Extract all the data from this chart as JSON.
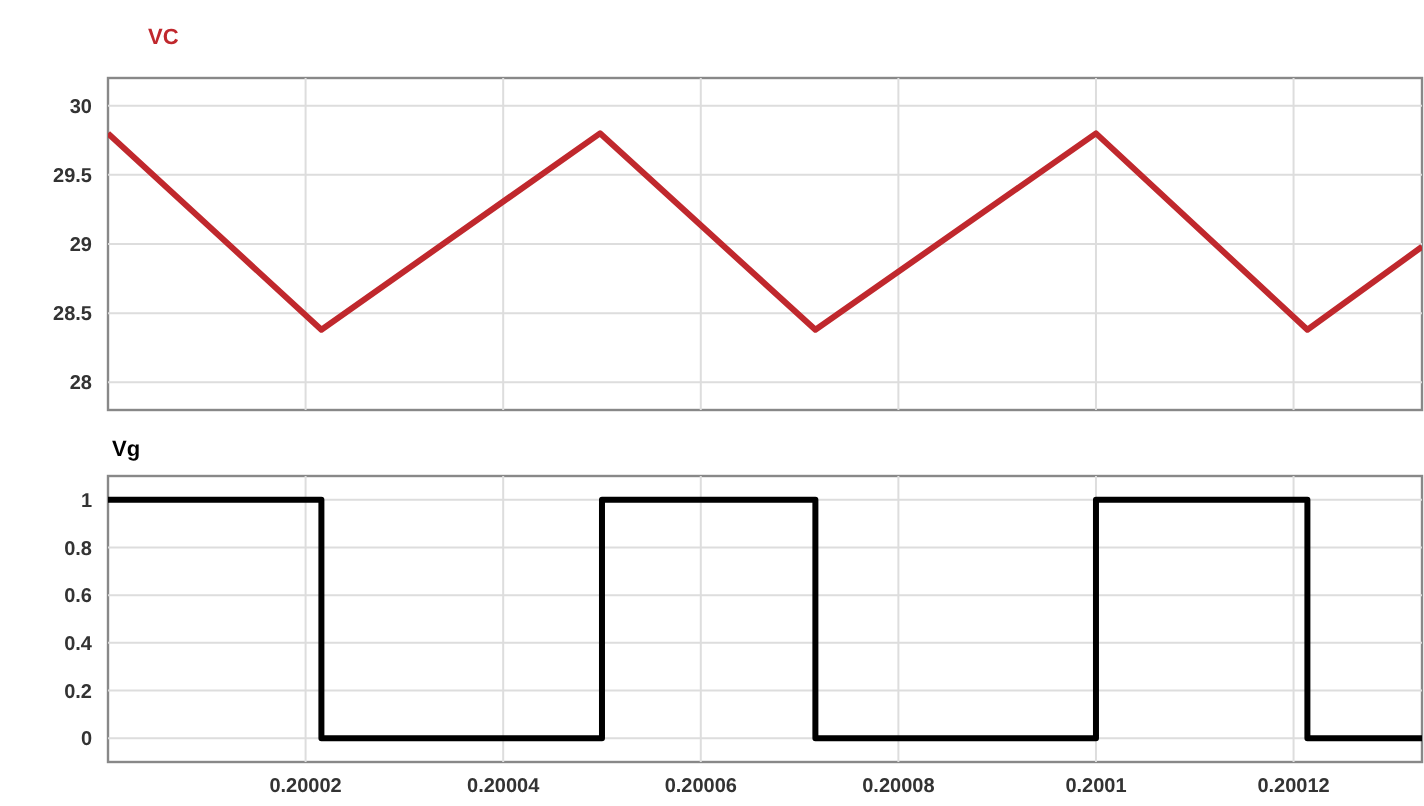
{
  "chart_data": [
    {
      "type": "line",
      "title": "VC",
      "x": [
        0.2,
        0.2000216,
        0.2000498,
        0.2000716,
        0.2001,
        0.2001214,
        0.200133
      ],
      "series": [
        {
          "color": "#c0282d",
          "values": [
            29.8,
            28.38,
            29.8,
            28.38,
            29.8,
            28.38,
            28.98
          ]
        }
      ],
      "xlim": [
        0.2,
        0.200133
      ],
      "xticks": [
        0.20002,
        0.20004,
        0.20006,
        0.20008,
        0.2001,
        0.20012
      ],
      "ylim": [
        27.8,
        30.2
      ],
      "yticks": [
        28,
        28.5,
        29,
        29.5,
        30
      ],
      "grid": true,
      "tick_labels": "y",
      "marker": "none",
      "line_style": "solid"
    },
    {
      "type": "line",
      "title": "Vg",
      "x": [
        0.2,
        0.2000216,
        0.2000216,
        0.20005,
        0.20005,
        0.2000716,
        0.2000716,
        0.2001,
        0.2001,
        0.2001214,
        0.2001214,
        0.200133
      ],
      "series": [
        {
          "color": "#000000",
          "values": [
            1,
            1,
            0,
            0,
            1,
            1,
            0,
            0,
            1,
            1,
            0,
            0
          ]
        }
      ],
      "xlim": [
        0.2,
        0.200133
      ],
      "xticks": [
        0.20002,
        0.20004,
        0.20006,
        0.20008,
        0.2001,
        0.20012
      ],
      "ylim": [
        -0.1,
        1.1
      ],
      "yticks": [
        0,
        0.2,
        0.4,
        0.6,
        0.8,
        1
      ],
      "grid": true,
      "marker": "none",
      "line_style": "solid"
    }
  ]
}
